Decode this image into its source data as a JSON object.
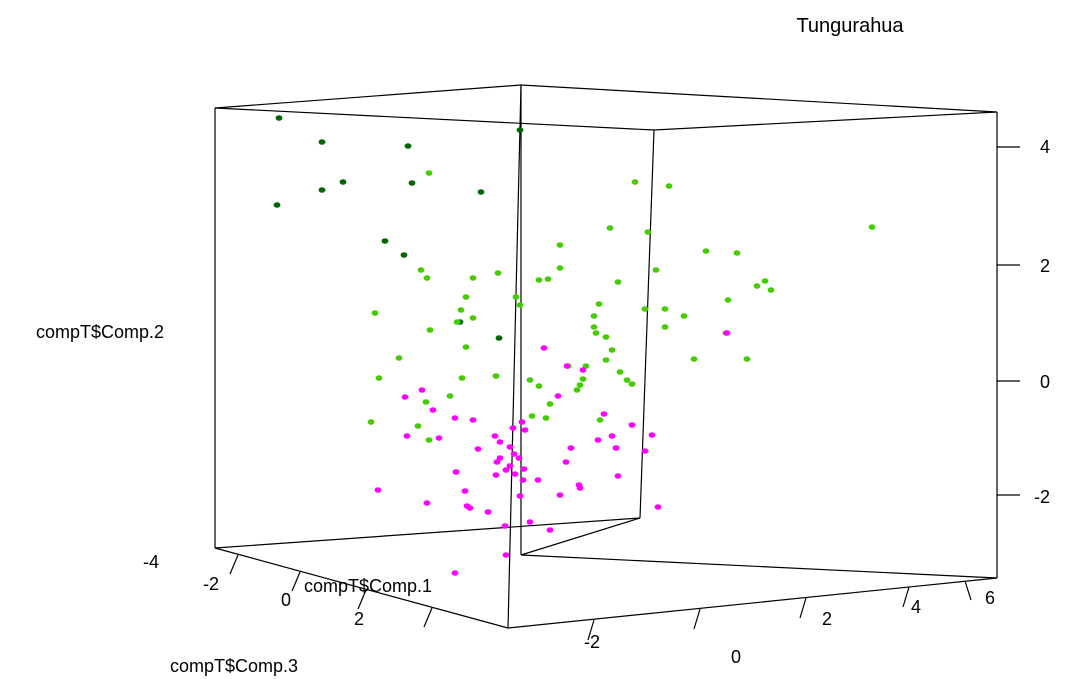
{
  "chart_data": {
    "type": "scatter3d",
    "title": "Tungurahua",
    "xlabel": "compT$Comp.1",
    "ylabel": "compT$Comp.2",
    "zlabel": "compT$Comp.3",
    "ylim": [
      -3,
      4.6
    ],
    "x_ticks": [
      "-2",
      "0",
      "2",
      "4",
      "6"
    ],
    "y_ticks": [
      "-4",
      "-2",
      "0",
      "2",
      "4"
    ],
    "right_ticks": [
      "4",
      "2",
      "0",
      "-2"
    ],
    "z_ticks": [
      "-2",
      "0",
      "2"
    ],
    "colors": {
      "dark_green": "#006400",
      "green": "#44cc00",
      "magenta": "#ff00ff"
    },
    "series": [
      {
        "color": "dark_green",
        "points": [
          [
            279,
            118
          ],
          [
            322,
            142
          ],
          [
            408,
            146
          ],
          [
            520,
            130
          ],
          [
            322,
            190
          ],
          [
            343,
            182
          ],
          [
            412,
            183
          ],
          [
            481,
            192
          ],
          [
            277,
            205
          ],
          [
            385,
            241
          ],
          [
            404,
            255
          ],
          [
            460,
            322
          ],
          [
            499,
            338
          ]
        ]
      },
      {
        "color": "green",
        "points": [
          [
            429,
            173
          ],
          [
            635,
            182
          ],
          [
            669,
            186
          ],
          [
            610,
            228
          ],
          [
            648,
            232
          ],
          [
            872,
            227
          ],
          [
            560,
            245
          ],
          [
            706,
            251
          ],
          [
            737,
            253
          ],
          [
            421,
            270
          ],
          [
            498,
            273
          ],
          [
            548,
            279
          ],
          [
            560,
            268
          ],
          [
            656,
            270
          ],
          [
            427,
            278
          ],
          [
            765,
            281
          ],
          [
            757,
            286
          ],
          [
            771,
            290
          ],
          [
            618,
            282
          ],
          [
            473,
            278
          ],
          [
            539,
            280
          ],
          [
            466,
            297
          ],
          [
            516,
            297
          ],
          [
            520,
            305
          ],
          [
            599,
            304
          ],
          [
            728,
            300
          ],
          [
            461,
            310
          ],
          [
            375,
            313
          ],
          [
            645,
            309
          ],
          [
            665,
            309
          ],
          [
            684,
            316
          ],
          [
            594,
            316
          ],
          [
            473,
            318
          ],
          [
            457,
            322
          ],
          [
            594,
            327
          ],
          [
            665,
            327
          ],
          [
            430,
            330
          ],
          [
            596,
            333
          ],
          [
            606,
            337
          ],
          [
            726,
            333
          ],
          [
            466,
            347
          ],
          [
            694,
            359
          ],
          [
            747,
            359
          ],
          [
            399,
            358
          ],
          [
            612,
            350
          ],
          [
            606,
            360
          ],
          [
            586,
            366
          ],
          [
            620,
            372
          ],
          [
            568,
            366
          ],
          [
            379,
            378
          ],
          [
            462,
            378
          ],
          [
            530,
            380
          ],
          [
            496,
            376
          ],
          [
            627,
            380
          ],
          [
            583,
            379
          ],
          [
            539,
            386
          ],
          [
            580,
            385
          ],
          [
            632,
            384
          ],
          [
            577,
            390
          ],
          [
            450,
            396
          ],
          [
            426,
            402
          ],
          [
            550,
            404
          ],
          [
            532,
            416
          ],
          [
            371,
            422
          ],
          [
            418,
            426
          ],
          [
            600,
            420
          ],
          [
            546,
            418
          ],
          [
            429,
            440
          ]
        ]
      },
      {
        "color": "magenta",
        "points": [
          [
            544,
            348
          ],
          [
            727,
            333
          ],
          [
            567,
            366
          ],
          [
            583,
            370
          ],
          [
            422,
            390
          ],
          [
            405,
            397
          ],
          [
            558,
            396
          ],
          [
            433,
            410
          ],
          [
            455,
            418
          ],
          [
            604,
            414
          ],
          [
            632,
            425
          ],
          [
            652,
            435
          ],
          [
            473,
            420
          ],
          [
            522,
            422
          ],
          [
            525,
            430
          ],
          [
            513,
            428
          ],
          [
            407,
            436
          ],
          [
            439,
            438
          ],
          [
            495,
            436
          ],
          [
            500,
            442
          ],
          [
            510,
            447
          ],
          [
            598,
            440
          ],
          [
            612,
            436
          ],
          [
            478,
            449
          ],
          [
            571,
            448
          ],
          [
            616,
            448
          ],
          [
            645,
            451
          ],
          [
            514,
            454
          ],
          [
            500,
            458
          ],
          [
            519,
            458
          ],
          [
            497,
            462
          ],
          [
            510,
            466
          ],
          [
            524,
            469
          ],
          [
            506,
            470
          ],
          [
            515,
            474
          ],
          [
            566,
            462
          ],
          [
            618,
            476
          ],
          [
            456,
            472
          ],
          [
            496,
            475
          ],
          [
            523,
            480
          ],
          [
            538,
            480
          ],
          [
            579,
            485
          ],
          [
            378,
            490
          ],
          [
            427,
            503
          ],
          [
            465,
            491
          ],
          [
            520,
            496
          ],
          [
            560,
            495
          ],
          [
            580,
            488
          ],
          [
            467,
            506
          ],
          [
            470,
            508
          ],
          [
            658,
            507
          ],
          [
            488,
            512
          ],
          [
            530,
            522
          ],
          [
            550,
            530
          ],
          [
            505,
            526
          ],
          [
            506,
            555
          ],
          [
            455,
            573
          ]
        ]
      }
    ]
  }
}
